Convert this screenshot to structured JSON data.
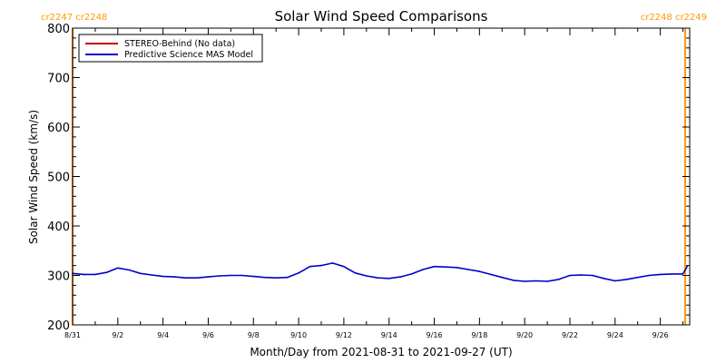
{
  "colors": {
    "background": "#ffffff",
    "axis": "#000000",
    "carrington_marker": "#ff9900",
    "series_stereo": "#c00000",
    "series_mas": "#0000cc"
  },
  "carrington_labels": {
    "left": "cr2247 cr2248",
    "right": "cr2248 cr2249"
  },
  "chart_data": {
    "type": "line",
    "title": "Solar Wind Speed Comparisons",
    "xlabel": "Month/Day from 2021-08-31 to 2021-09-27 (UT)",
    "ylabel": "Solar Wind Speed (km/s)",
    "xlim": [
      0,
      27.3
    ],
    "ylim": [
      200,
      800
    ],
    "grid": false,
    "legend_position": "top-left",
    "y_ticks": [
      200,
      300,
      400,
      500,
      600,
      700,
      800
    ],
    "y_tick_labels": [
      "200",
      "300",
      "400",
      "500",
      "600",
      "700",
      "800"
    ],
    "x_ticks": [
      0,
      2,
      4,
      6,
      8,
      10,
      12,
      14,
      16,
      18,
      20,
      22,
      24,
      26
    ],
    "x_tick_labels": [
      "8/31",
      "9/2",
      "9/4",
      "9/6",
      "9/8",
      "9/10",
      "9/12",
      "9/14",
      "9/16",
      "9/18",
      "9/20",
      "9/22",
      "9/24",
      "9/26"
    ],
    "carrington_boundaries": [
      0,
      27.1
    ],
    "series": [
      {
        "name": "STEREO-Behind (No data)",
        "color": "#c00000",
        "x": [],
        "y": []
      },
      {
        "name": "Predictive Science MAS Model",
        "color": "#0000cc",
        "x": [
          0,
          0.5,
          1,
          1.5,
          2,
          2.5,
          3,
          3.5,
          4,
          4.5,
          5,
          5.5,
          6,
          6.5,
          7,
          7.5,
          8,
          8.5,
          9,
          9.5,
          10,
          10.5,
          11,
          11.5,
          12,
          12.5,
          13,
          13.5,
          14,
          14.5,
          15,
          15.5,
          16,
          16.5,
          17,
          17.5,
          18,
          18.5,
          19,
          19.5,
          20,
          20.5,
          21,
          21.5,
          22,
          22.5,
          23,
          23.5,
          24,
          24.5,
          25,
          25.5,
          26,
          26.5,
          27,
          27.2
        ],
        "y": [
          304,
          302,
          302,
          306,
          315,
          311,
          304,
          301,
          298,
          297,
          295,
          295,
          297,
          299,
          300,
          300,
          298,
          296,
          295,
          296,
          305,
          318,
          320,
          325,
          318,
          305,
          299,
          295,
          294,
          297,
          303,
          312,
          318,
          317,
          316,
          312,
          308,
          302,
          296,
          290,
          288,
          289,
          288,
          292,
          300,
          301,
          300,
          294,
          289,
          292,
          296,
          300,
          302,
          303,
          303,
          319
        ]
      }
    ]
  }
}
